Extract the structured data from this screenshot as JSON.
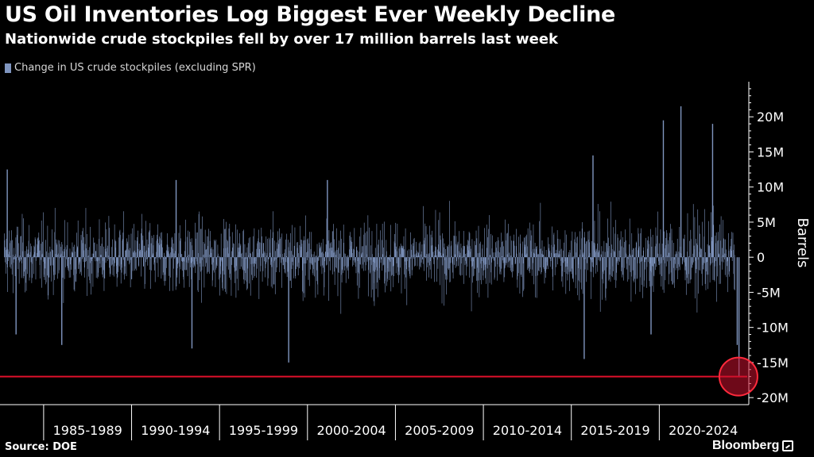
{
  "header": {
    "title": "US Oil Inventories Log Biggest Ever Weekly Decline",
    "subtitle": "Nationwide crude stockpiles fell by over 17 million barrels last week"
  },
  "footer": {
    "source": "Source: DOE",
    "brand": "Bloomberg"
  },
  "colors": {
    "background": "#000000",
    "bars": "#7f95bf",
    "highlight_line": "#e0102b",
    "highlight_circle": "#c8102e",
    "axis": "#ffffff"
  },
  "chart_data": {
    "type": "bar",
    "title": "US Oil Inventories Log Biggest Ever Weekly Decline",
    "subtitle": "Nationwide crude stockpiles fell by over 17 million barrels last week",
    "ylabel": "Barrels",
    "xlabel": "",
    "ylim": [
      -21000000,
      25000000
    ],
    "y_ticks": [
      20000000,
      15000000,
      10000000,
      5000000,
      0,
      -5000000,
      -10000000,
      -15000000,
      -20000000
    ],
    "y_tick_labels": [
      "20M",
      "15M",
      "10M",
      "5M",
      "0",
      "-5M",
      "-10M",
      "-15M",
      "-20M"
    ],
    "x_range": [
      1982.7,
      2025.0
    ],
    "x_tick_labels": [
      "1985-1989",
      "1990-1994",
      "1995-1999",
      "2000-2004",
      "2005-2009",
      "2010-2014",
      "2015-2019",
      "2020-2024"
    ],
    "x_tick_boundaries": [
      1985,
      1990,
      1995,
      2000,
      2005,
      2010,
      2015,
      2020
    ],
    "grid": false,
    "legend_position": "top-left",
    "series": [
      {
        "name": "Change in US crude stockpiles (excluding SPR)",
        "frequency": "weekly",
        "representative_extremes": [
          {
            "x": 1982.9,
            "y": 12500000
          },
          {
            "x": 1983.4,
            "y": -11000000
          },
          {
            "x": 1986.0,
            "y": -12500000
          },
          {
            "x": 1992.5,
            "y": 11000000
          },
          {
            "x": 1993.4,
            "y": -13000000
          },
          {
            "x": 1998.9,
            "y": -15000000
          },
          {
            "x": 2001.1,
            "y": 11000000
          },
          {
            "x": 2016.2,
            "y": 14500000
          },
          {
            "x": 2015.7,
            "y": -14500000
          },
          {
            "x": 2019.5,
            "y": -11000000
          },
          {
            "x": 2020.2,
            "y": 19500000
          },
          {
            "x": 2021.2,
            "y": 21500000
          },
          {
            "x": 2023.0,
            "y": 19000000
          },
          {
            "x": 2024.4,
            "y": -12500000
          },
          {
            "x": 2024.5,
            "y": -17000000
          }
        ]
      }
    ],
    "annotations": [
      {
        "type": "horizontal_line",
        "y": -17000000
      },
      {
        "type": "circle_marker",
        "x": 2024.5,
        "y": -17000000
      }
    ]
  }
}
